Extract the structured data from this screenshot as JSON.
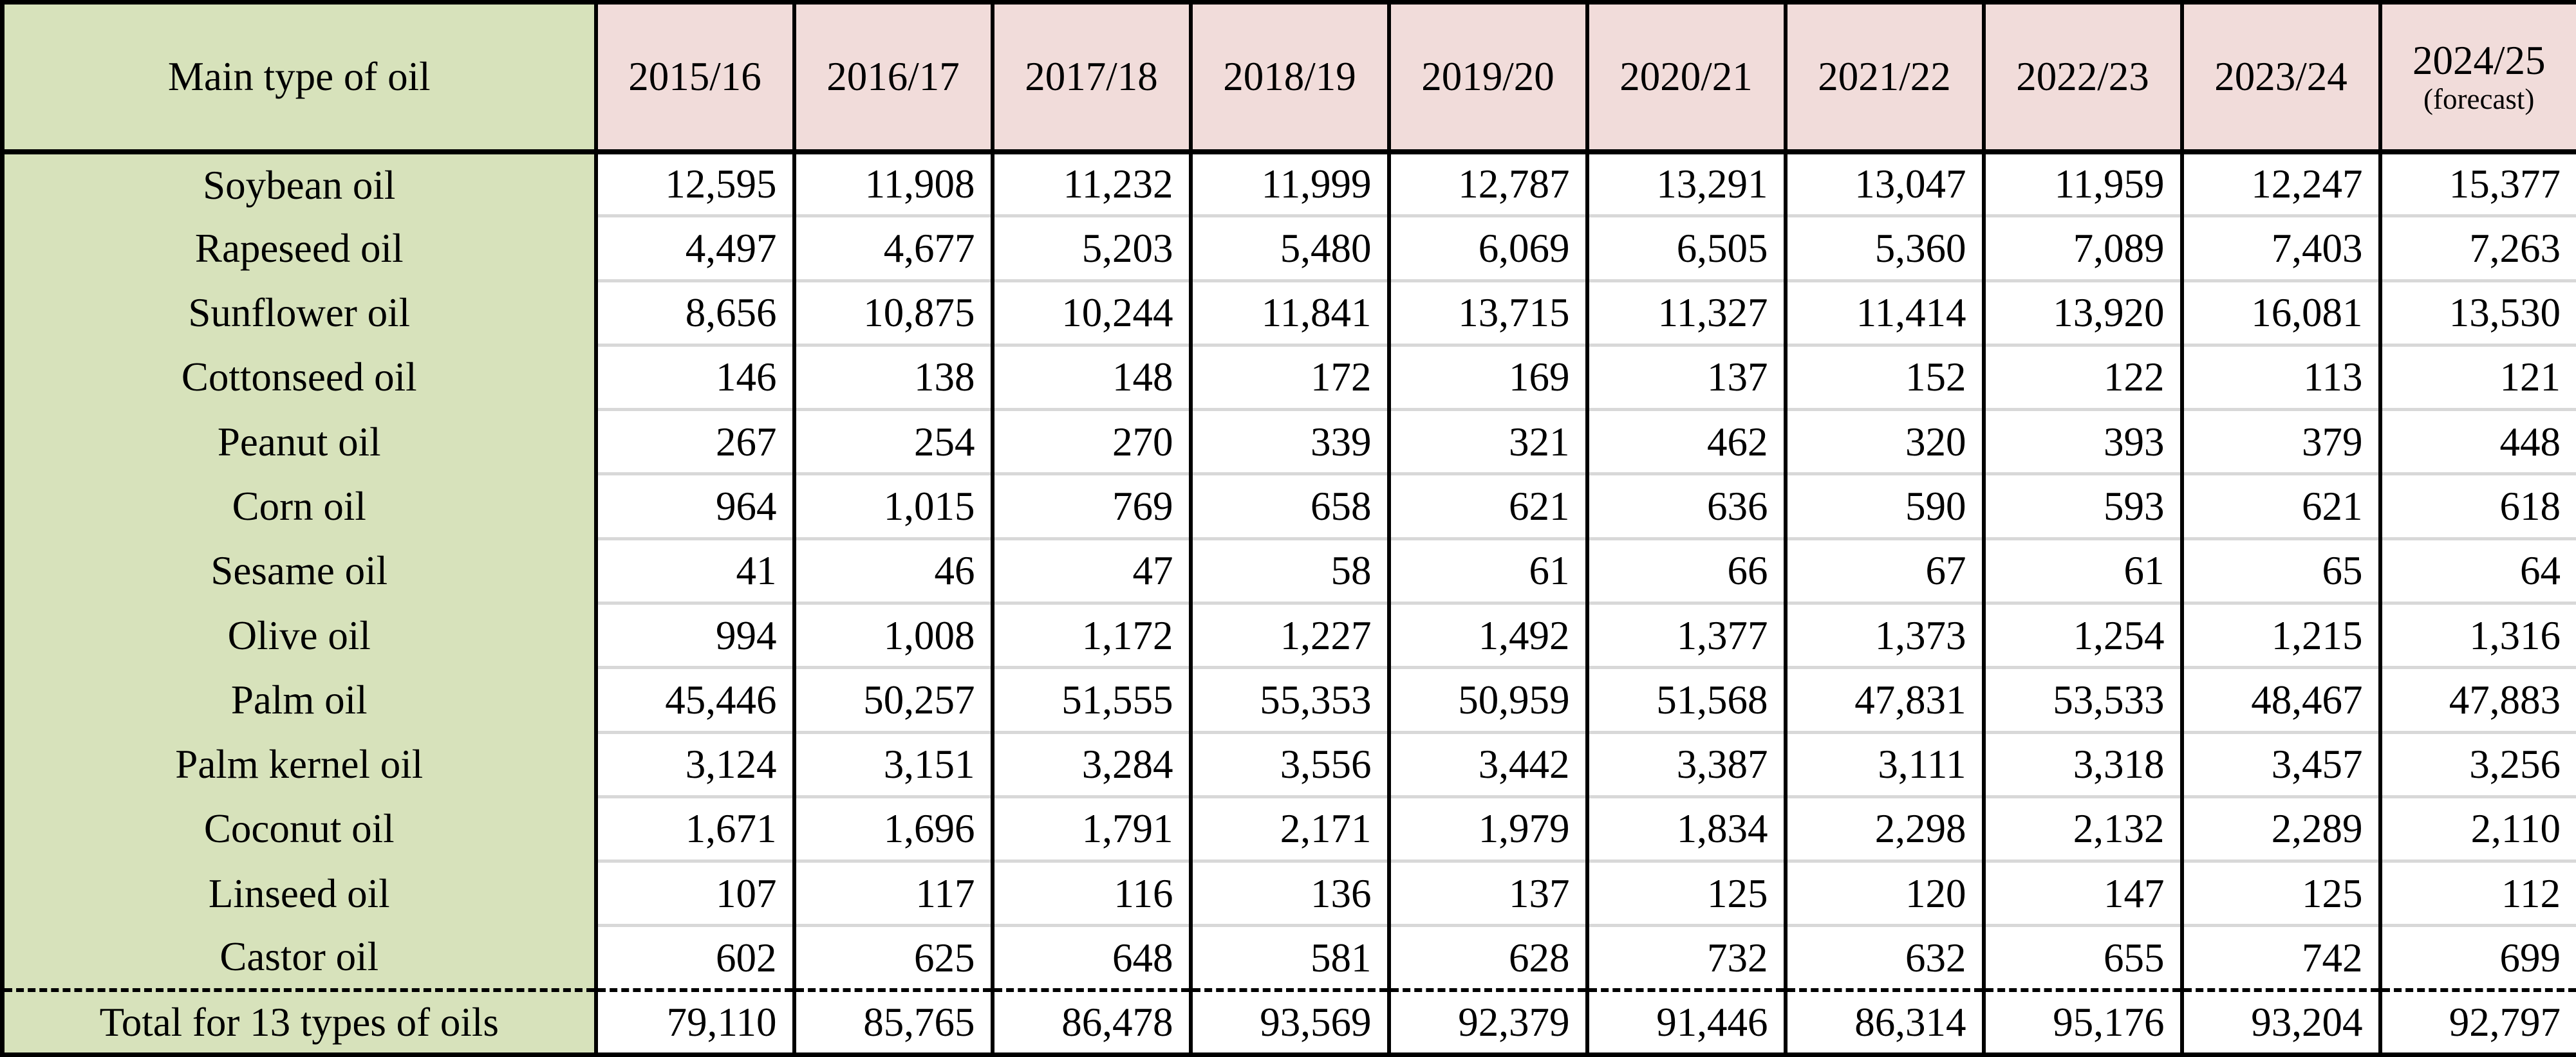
{
  "table": {
    "header": {
      "main_col": "Main type of oil",
      "years": [
        "2015/16",
        "2016/17",
        "2017/18",
        "2018/19",
        "2019/20",
        "2020/21",
        "2021/22",
        "2022/23",
        "2023/24"
      ],
      "forecast": {
        "year": "2024/25",
        "note": "(forecast)"
      }
    },
    "rows": [
      {
        "label": "Soybean oil",
        "values": [
          "12,595",
          "11,908",
          "11,232",
          "11,999",
          "12,787",
          "13,291",
          "13,047",
          "11,959",
          "12,247",
          "15,377"
        ]
      },
      {
        "label": "Rapeseed oil",
        "values": [
          "4,497",
          "4,677",
          "5,203",
          "5,480",
          "6,069",
          "6,505",
          "5,360",
          "7,089",
          "7,403",
          "7,263"
        ]
      },
      {
        "label": "Sunflower oil",
        "values": [
          "8,656",
          "10,875",
          "10,244",
          "11,841",
          "13,715",
          "11,327",
          "11,414",
          "13,920",
          "16,081",
          "13,530"
        ]
      },
      {
        "label": "Cottonseed oil",
        "values": [
          "146",
          "138",
          "148",
          "172",
          "169",
          "137",
          "152",
          "122",
          "113",
          "121"
        ]
      },
      {
        "label": "Peanut oil",
        "values": [
          "267",
          "254",
          "270",
          "339",
          "321",
          "462",
          "320",
          "393",
          "379",
          "448"
        ]
      },
      {
        "label": "Corn oil",
        "values": [
          "964",
          "1,015",
          "769",
          "658",
          "621",
          "636",
          "590",
          "593",
          "621",
          "618"
        ]
      },
      {
        "label": "Sesame oil",
        "values": [
          "41",
          "46",
          "47",
          "58",
          "61",
          "66",
          "67",
          "61",
          "65",
          "64"
        ]
      },
      {
        "label": "Olive oil",
        "values": [
          "994",
          "1,008",
          "1,172",
          "1,227",
          "1,492",
          "1,377",
          "1,373",
          "1,254",
          "1,215",
          "1,316"
        ]
      },
      {
        "label": "Palm oil",
        "values": [
          "45,446",
          "50,257",
          "51,555",
          "55,353",
          "50,959",
          "51,568",
          "47,831",
          "53,533",
          "48,467",
          "47,883"
        ]
      },
      {
        "label": "Palm kernel oil",
        "values": [
          "3,124",
          "3,151",
          "3,284",
          "3,556",
          "3,442",
          "3,387",
          "3,111",
          "3,318",
          "3,457",
          "3,256"
        ]
      },
      {
        "label": "Coconut oil",
        "values": [
          "1,671",
          "1,696",
          "1,791",
          "2,171",
          "1,979",
          "1,834",
          "2,298",
          "2,132",
          "2,289",
          "2,110"
        ]
      },
      {
        "label": "Linseed oil",
        "values": [
          "107",
          "117",
          "116",
          "136",
          "137",
          "125",
          "120",
          "147",
          "125",
          "112"
        ]
      },
      {
        "label": "Castor oil",
        "values": [
          "602",
          "625",
          "648",
          "581",
          "628",
          "732",
          "632",
          "655",
          "742",
          "699"
        ]
      }
    ],
    "total_row": {
      "label": "Total for 13 types of oils",
      "values": [
        "79,110",
        "85,765",
        "86,478",
        "93,569",
        "92,379",
        "91,446",
        "86,314",
        "95,176",
        "93,204",
        "92,797"
      ]
    }
  },
  "colors": {
    "label_column_bg": "#d7e2bb",
    "year_header_bg": "#f1dcda",
    "cell_bg": "#ffffff",
    "grid_black": "#000000",
    "row_separator_gray": "#d8d8d8",
    "text": "#000000"
  },
  "chart_data": {
    "type": "table",
    "title": "",
    "categories": [
      "2015/16",
      "2016/17",
      "2017/18",
      "2018/19",
      "2019/20",
      "2020/21",
      "2021/22",
      "2022/23",
      "2023/24",
      "2024/25 (forecast)"
    ],
    "row_header_label": "Main type of oil",
    "series": [
      {
        "name": "Soybean oil",
        "values": [
          12595,
          11908,
          11232,
          11999,
          12787,
          13291,
          13047,
          11959,
          12247,
          15377
        ]
      },
      {
        "name": "Rapeseed oil",
        "values": [
          4497,
          4677,
          5203,
          5480,
          6069,
          6505,
          5360,
          7089,
          7403,
          7263
        ]
      },
      {
        "name": "Sunflower oil",
        "values": [
          8656,
          10875,
          10244,
          11841,
          13715,
          11327,
          11414,
          13920,
          16081,
          13530
        ]
      },
      {
        "name": "Cottonseed oil",
        "values": [
          146,
          138,
          148,
          172,
          169,
          137,
          152,
          122,
          113,
          121
        ]
      },
      {
        "name": "Peanut oil",
        "values": [
          267,
          254,
          270,
          339,
          321,
          462,
          320,
          393,
          379,
          448
        ]
      },
      {
        "name": "Corn oil",
        "values": [
          964,
          1015,
          769,
          658,
          621,
          636,
          590,
          593,
          621,
          618
        ]
      },
      {
        "name": "Sesame oil",
        "values": [
          41,
          46,
          47,
          58,
          61,
          66,
          67,
          61,
          65,
          64
        ]
      },
      {
        "name": "Olive oil",
        "values": [
          994,
          1008,
          1172,
          1227,
          1492,
          1377,
          1373,
          1254,
          1215,
          1316
        ]
      },
      {
        "name": "Palm oil",
        "values": [
          45446,
          50257,
          51555,
          55353,
          50959,
          51568,
          47831,
          53533,
          48467,
          47883
        ]
      },
      {
        "name": "Palm kernel oil",
        "values": [
          3124,
          3151,
          3284,
          3556,
          3442,
          3387,
          3111,
          3318,
          3457,
          3256
        ]
      },
      {
        "name": "Coconut oil",
        "values": [
          1671,
          1696,
          1791,
          2171,
          1979,
          1834,
          2298,
          2132,
          2289,
          2110
        ]
      },
      {
        "name": "Linseed oil",
        "values": [
          107,
          117,
          116,
          136,
          137,
          125,
          120,
          147,
          125,
          112
        ]
      },
      {
        "name": "Castor oil",
        "values": [
          602,
          625,
          648,
          581,
          628,
          732,
          632,
          655,
          742,
          699
        ]
      },
      {
        "name": "Total for 13 types of oils",
        "values": [
          79110,
          85765,
          86478,
          93569,
          92379,
          91446,
          86314,
          95176,
          93204,
          92797
        ]
      }
    ],
    "layout_hints": {
      "grid": "on",
      "legend": "none",
      "first_column_role": "row labels",
      "last_row_role": "totals, separated by dashed rule"
    }
  }
}
